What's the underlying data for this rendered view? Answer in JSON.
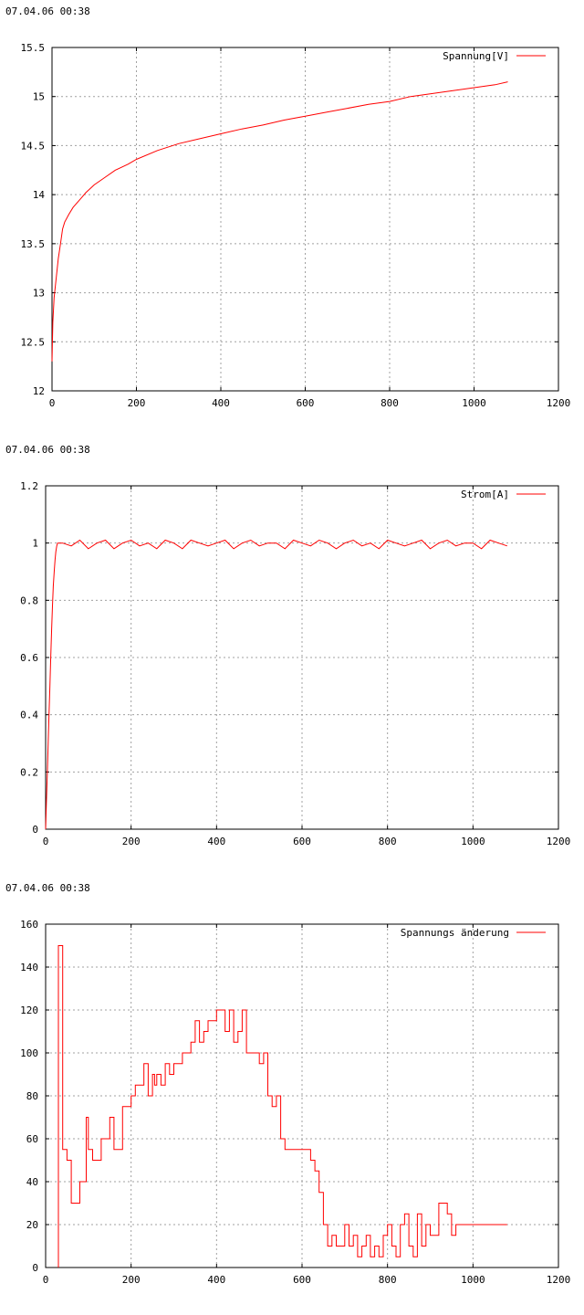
{
  "chart_data": [
    {
      "type": "line",
      "timestamp": "07.04.06 00:38",
      "title": "",
      "xlabel": "",
      "ylabel": "",
      "xlim": [
        0,
        1200
      ],
      "ylim": [
        12,
        15.5
      ],
      "x_ticks": [
        "0",
        "200",
        "400",
        "600",
        "800",
        "1000",
        "1200"
      ],
      "y_ticks": [
        "12",
        "12.5",
        "13",
        "13.5",
        "14",
        "14.5",
        "15",
        "15.5"
      ],
      "grid": true,
      "legend_position": "top-right",
      "series": [
        {
          "name": "Spannung[V]",
          "color": "#ff0000",
          "x": [
            0,
            2,
            5,
            10,
            15,
            20,
            25,
            30,
            40,
            50,
            60,
            70,
            80,
            100,
            120,
            150,
            180,
            200,
            250,
            300,
            350,
            400,
            450,
            500,
            550,
            600,
            650,
            700,
            750,
            800,
            850,
            900,
            950,
            1000,
            1050,
            1080
          ],
          "values": [
            12.3,
            12.7,
            12.95,
            13.15,
            13.35,
            13.5,
            13.65,
            13.72,
            13.8,
            13.87,
            13.92,
            13.97,
            14.02,
            14.1,
            14.16,
            14.25,
            14.31,
            14.36,
            14.45,
            14.52,
            14.57,
            14.62,
            14.67,
            14.71,
            14.76,
            14.8,
            14.84,
            14.88,
            14.92,
            14.95,
            15.0,
            15.03,
            15.06,
            15.09,
            15.12,
            15.15
          ]
        }
      ]
    },
    {
      "type": "line",
      "timestamp": "07.04.06 00:38",
      "title": "",
      "xlabel": "",
      "ylabel": "",
      "xlim": [
        0,
        1200
      ],
      "ylim": [
        0,
        1.2
      ],
      "x_ticks": [
        "0",
        "200",
        "400",
        "600",
        "800",
        "1000",
        "1200"
      ],
      "y_ticks": [
        "0",
        "0.2",
        "0.4",
        "0.6",
        "0.8",
        "1",
        "1.2"
      ],
      "grid": true,
      "legend_position": "top-right",
      "series": [
        {
          "name": "Strom[A]",
          "color": "#ff0000",
          "x": [
            0,
            2,
            4,
            6,
            8,
            10,
            12,
            14,
            16,
            18,
            20,
            22,
            24,
            26,
            28,
            30,
            40,
            60,
            80,
            100,
            120,
            140,
            160,
            180,
            200,
            220,
            240,
            260,
            280,
            300,
            320,
            340,
            360,
            380,
            400,
            420,
            440,
            460,
            480,
            500,
            520,
            540,
            560,
            580,
            600,
            620,
            640,
            660,
            680,
            700,
            720,
            740,
            760,
            780,
            800,
            820,
            840,
            860,
            880,
            900,
            920,
            940,
            960,
            980,
            1000,
            1020,
            1040,
            1060,
            1080
          ],
          "values": [
            0.0,
            0.1,
            0.2,
            0.3,
            0.4,
            0.5,
            0.6,
            0.7,
            0.78,
            0.85,
            0.9,
            0.94,
            0.97,
            0.99,
            1.0,
            1.0,
            1.0,
            0.99,
            1.01,
            0.98,
            1.0,
            1.01,
            0.98,
            1.0,
            1.01,
            0.99,
            1.0,
            0.98,
            1.01,
            1.0,
            0.98,
            1.01,
            1.0,
            0.99,
            1.0,
            1.01,
            0.98,
            1.0,
            1.01,
            0.99,
            1.0,
            1.0,
            0.98,
            1.01,
            1.0,
            0.99,
            1.01,
            1.0,
            0.98,
            1.0,
            1.01,
            0.99,
            1.0,
            0.98,
            1.01,
            1.0,
            0.99,
            1.0,
            1.01,
            0.98,
            1.0,
            1.01,
            0.99,
            1.0,
            1.0,
            0.98,
            1.01,
            1.0,
            0.99
          ]
        }
      ]
    },
    {
      "type": "line",
      "timestamp": "07.04.06 00:38",
      "title": "",
      "xlabel": "",
      "ylabel": "",
      "xlim": [
        0,
        1200
      ],
      "ylim": [
        0,
        160
      ],
      "x_ticks": [
        "0",
        "200",
        "400",
        "600",
        "800",
        "1000",
        "1200"
      ],
      "y_ticks": [
        "0",
        "20",
        "40",
        "60",
        "80",
        "100",
        "120",
        "140",
        "160"
      ],
      "grid": true,
      "legend_position": "top-right",
      "series": [
        {
          "name": "Spannungs änderung",
          "color": "#ff0000",
          "step": true,
          "x": [
            30,
            32,
            40,
            50,
            60,
            80,
            95,
            100,
            110,
            130,
            150,
            160,
            170,
            180,
            200,
            210,
            230,
            240,
            250,
            255,
            260,
            270,
            280,
            290,
            300,
            320,
            330,
            340,
            350,
            360,
            370,
            380,
            400,
            420,
            430,
            440,
            450,
            460,
            470,
            480,
            490,
            500,
            510,
            520,
            530,
            540,
            550,
            560,
            620,
            630,
            640,
            650,
            660,
            670,
            680,
            690,
            700,
            710,
            720,
            730,
            740,
            750,
            760,
            770,
            780,
            790,
            800,
            810,
            820,
            830,
            840,
            850,
            860,
            870,
            880,
            890,
            900,
            920,
            940,
            950,
            960,
            970,
            980,
            990,
            1000,
            1010,
            1020,
            1030,
            1040,
            1050,
            1060,
            1080
          ],
          "values": [
            150,
            150,
            55,
            50,
            30,
            40,
            70,
            55,
            50,
            60,
            70,
            55,
            55,
            75,
            80,
            85,
            95,
            80,
            90,
            85,
            90,
            85,
            95,
            90,
            95,
            100,
            100,
            105,
            115,
            105,
            110,
            115,
            120,
            110,
            120,
            105,
            110,
            120,
            100,
            100,
            100,
            95,
            100,
            80,
            75,
            80,
            60,
            55,
            50,
            45,
            35,
            20,
            10,
            15,
            10,
            10,
            20,
            10,
            15,
            5,
            10,
            15,
            5,
            10,
            5,
            15,
            20,
            10,
            5,
            20,
            25,
            10,
            5,
            25,
            10,
            20,
            15,
            30,
            25,
            15,
            20,
            20,
            20,
            20,
            20,
            20,
            20,
            20,
            20,
            20,
            20,
            20
          ]
        }
      ]
    }
  ]
}
